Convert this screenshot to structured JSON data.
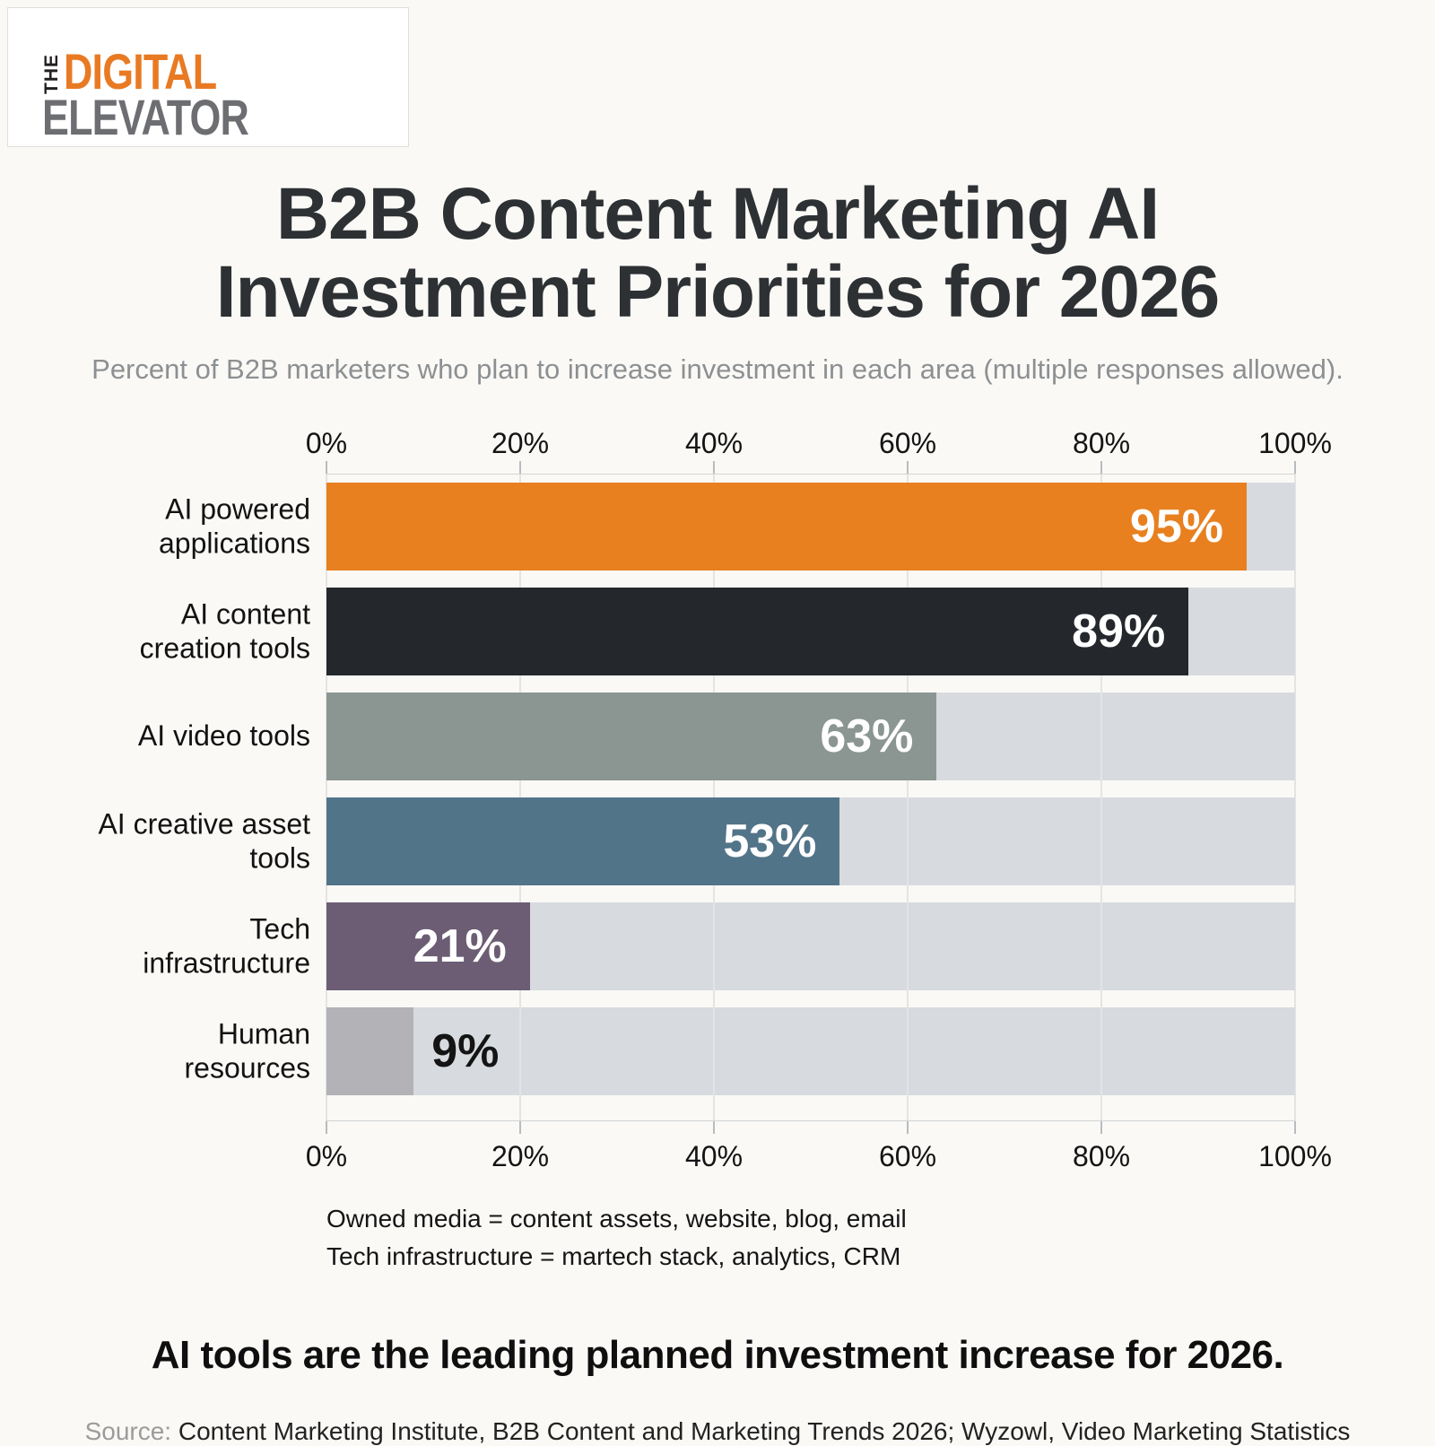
{
  "logo": {
    "the": "THE",
    "digital": "DIGITAL",
    "elevator": "ELEVATOR"
  },
  "title_line1": "B2B Content Marketing AI",
  "title_line2": "Investment Priorities for 2026",
  "subtitle": "Percent of B2B marketers who plan to increase investment in each area (multiple responses allowed).",
  "chart_data": {
    "type": "bar",
    "orientation": "horizontal",
    "title": "B2B Content Marketing AI Investment Priorities for 2026",
    "categories": [
      "AI powered applications",
      "AI content creation tools",
      "AI video tools",
      "AI creative asset tools",
      "Tech infrastructure",
      "Human resources"
    ],
    "values": [
      95,
      89,
      63,
      53,
      21,
      9
    ],
    "value_labels": [
      "95%",
      "89%",
      "63%",
      "53%",
      "21%",
      "9%"
    ],
    "bar_colors": [
      "#e8801f",
      "#24282d",
      "#8b9693",
      "#527489",
      "#6c5d74",
      "#b2b2b7"
    ],
    "label_inside": [
      true,
      true,
      true,
      true,
      true,
      false
    ],
    "xlim": [
      0,
      100
    ],
    "x_ticks": [
      "0%",
      "20%",
      "40%",
      "60%",
      "80%",
      "100%"
    ],
    "grid": true,
    "track_color": "#d7dade",
    "legend_position": "none"
  },
  "footnotes": {
    "line1": "Owned media = content assets, website, blog, email",
    "line2": "Tech infrastructure = martech stack, analytics, CRM"
  },
  "takeaway": "AI tools are the leading planned investment increase for 2026.",
  "source_label": "Source:",
  "source_text": " Content Marketing Institute, B2B Content and Marketing Trends 2026; Wyzowl, Video Marketing Statistics"
}
